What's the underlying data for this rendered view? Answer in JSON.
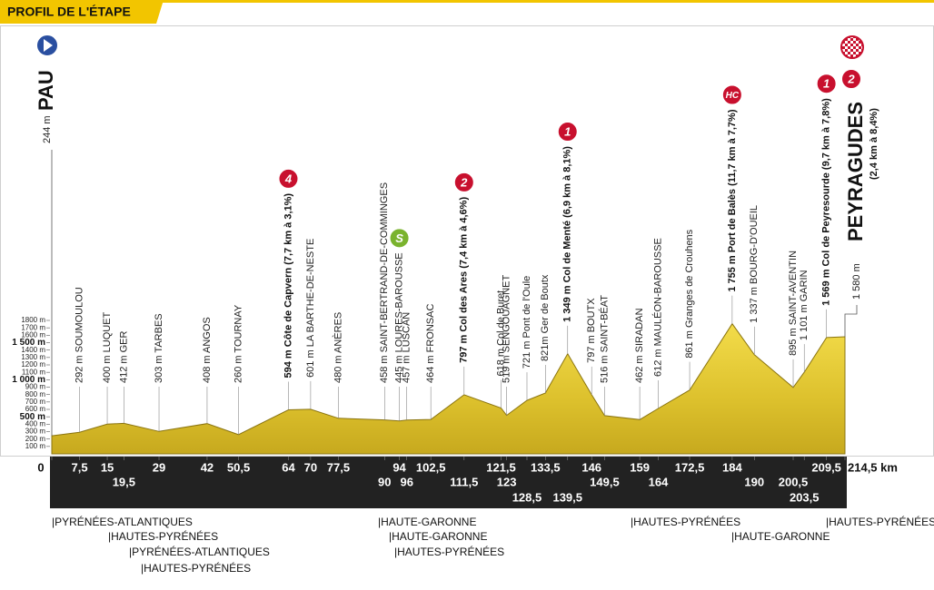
{
  "chart_data": {
    "type": "area",
    "title": "PROFIL DE L'ÉTAPE",
    "start_name": "PAU",
    "finish_name": "PEYRAGUDES",
    "finish_note": "(2,4 km à 8,4%)",
    "color": "#e6cc32",
    "x": [
      0,
      7.5,
      15,
      19.5,
      29,
      42,
      50.5,
      64,
      70,
      77.5,
      90,
      94,
      96,
      102.5,
      111.5,
      121.5,
      123,
      128.5,
      133.5,
      139.5,
      146,
      149.5,
      159,
      164,
      172.5,
      184,
      190,
      200.5,
      203.5,
      209.5,
      214.5
    ],
    "values": [
      244,
      292,
      400,
      412,
      303,
      408,
      260,
      594,
      601,
      480,
      458,
      445,
      457,
      464,
      797,
      618,
      519,
      721,
      821,
      1349,
      797,
      516,
      462,
      612,
      861,
      1755,
      1337,
      895,
      1101,
      1569,
      1580
    ],
    "value_labels": [
      "244 m",
      "292 m SOUMOULOU",
      "400 m LUQUET",
      "412 m GER",
      "303 m TARBES",
      "408 m ANGOS",
      "260 m TOURNAY",
      "594 m Côte de Capvern (7,7 km à 3,1%)",
      "601 m LA BARTHE-DE-NESTE",
      "480 m ANÈRES",
      "458 m SAINT-BERTRAND-DE-COMMINGES",
      "445 m LOURES-BAROUSSE",
      "457 m LUSCAN",
      "464 m FRONSAC",
      "797 m Col des Ares (7,4 km à 4,6%)",
      "618 m Col de Buret",
      "519 m SENGOUAGNET",
      "721 m Pont de l'Oule",
      "821m Ger de Boutx",
      "1 349 m Col de Menté (6,9 km à 8,1%)",
      "797 m BOUTX",
      "516 m SAINT-BÉAT",
      "462 m SIRADAN",
      "612 m MAULÉON-BAROUSSE",
      "861 m Granges de Crouhens",
      "1 755 m Port de Balès (11,7 km à 7,7%)",
      "1 337 m BOURG-D'OUEIL",
      "895 m SAINT-AVENTIN",
      "1 101 m GARIN",
      "1 569 m Col de Peyresourde (9,7 km à 7,8%)",
      "1 580 m"
    ],
    "climbs": [
      null,
      null,
      null,
      null,
      null,
      null,
      null,
      "4",
      null,
      null,
      null,
      "S",
      null,
      null,
      "2",
      null,
      null,
      null,
      null,
      "1",
      null,
      null,
      null,
      null,
      null,
      "HC",
      null,
      null,
      null,
      "1",
      "2"
    ],
    "xlim": [
      0,
      214.5
    ],
    "xticks": [
      0,
      {
        "value": 7.5,
        "label": "7,5"
      },
      15,
      {
        "value": 19.5,
        "label": "19,5"
      },
      29,
      42,
      {
        "value": 50.5,
        "label": "50,5"
      },
      64,
      70,
      {
        "value": 77.5,
        "label": "77,5"
      },
      90,
      94,
      96,
      {
        "value": 102.5,
        "label": "102,5"
      },
      {
        "value": 111.5,
        "label": "111,5"
      },
      {
        "value": 121.5,
        "label": "121,5"
      },
      123,
      {
        "value": 128.5,
        "label": "128,5"
      },
      {
        "value": 133.5,
        "label": "133,5"
      },
      {
        "value": 139.5,
        "label": "139,5"
      },
      146,
      {
        "value": 149.5,
        "label": "149,5"
      },
      159,
      164,
      {
        "value": 172.5,
        "label": "172,5"
      },
      184,
      190,
      {
        "value": 200.5,
        "label": "200,5"
      },
      {
        "value": 203.5,
        "label": "203,5"
      },
      {
        "value": 209.5,
        "label": "209,5"
      },
      {
        "value": 214.5,
        "label": "214,5 km"
      }
    ],
    "ylim": [
      0,
      1800
    ],
    "yticks": [
      {
        "value": 100,
        "label": "100 m"
      },
      {
        "value": 200,
        "label": "200 m"
      },
      {
        "value": 300,
        "label": "300 m"
      },
      {
        "value": 400,
        "label": "400 m"
      },
      {
        "value": 500,
        "label": "500 m"
      },
      {
        "value": 600,
        "label": "600 m"
      },
      {
        "value": 700,
        "label": "700 m"
      },
      {
        "value": 800,
        "label": "800 m"
      },
      {
        "value": 900,
        "label": "900 m"
      },
      {
        "value": 1000,
        "label": "1 000 m"
      },
      {
        "value": 1100,
        "label": "1100 m"
      },
      {
        "value": 1200,
        "label": "1200 m"
      },
      {
        "value": 1300,
        "label": "1300 m"
      },
      {
        "value": 1400,
        "label": "1400 m"
      },
      {
        "value": 1500,
        "label": "1 500 m"
      },
      {
        "value": 1600,
        "label": "1600 m"
      },
      {
        "value": 1700,
        "label": "1700 m"
      },
      {
        "value": 1800,
        "label": "1800 m"
      }
    ],
    "regions": [
      "|PYRÉNÉES-ATLANTIQUES",
      "|HAUTES-PYRÉNÉES",
      "|PYRÉNÉES-ATLANTIQUES",
      "|HAUTES-PYRÉNÉES",
      "|HAUTE-GARONNE",
      "|HAUTE-GARONNE",
      "|HAUTES-PYRÉNÉES",
      "|HAUTES-PYRÉNÉES",
      "|HAUTE-GARONNE",
      "|HAUTES-PYRÉNÉES"
    ]
  }
}
